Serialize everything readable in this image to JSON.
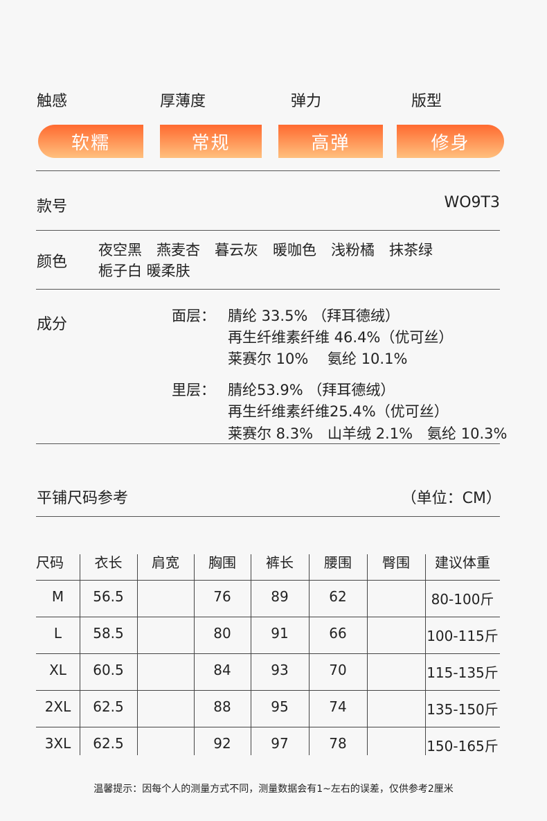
{
  "attributes": [
    {
      "label": "触感",
      "value": "软糯"
    },
    {
      "label": "厚薄度",
      "value": "常规"
    },
    {
      "label": "弹力",
      "value": "高弹"
    },
    {
      "label": "版型",
      "value": "修身"
    }
  ],
  "style_no": {
    "label": "款号",
    "value": "WO9T3"
  },
  "colors": {
    "label": "颜色",
    "line1": "夜空黑　燕麦杏　暮云灰　暖咖色　浅粉橘　抹茶绿",
    "line2": "栀子白 暖柔肤"
  },
  "composition": {
    "label": "成分",
    "outer": {
      "label": "面层：",
      "lines": [
        "腈纶 33.5% （拜耳德绒）",
        "再生纤维素纤维 46.4%（优可丝）",
        "莱赛尔 10%　 氨纶 10.1%"
      ]
    },
    "inner": {
      "label": "里层：",
      "lines": [
        "腈纶53.9% （拜耳德绒）",
        "再生纤维素纤维25.4%（优可丝）",
        "莱赛尔 8.3%　山羊绒 2.1%　氨纶 10.3%"
      ]
    }
  },
  "size_chart": {
    "title": "平铺尺码参考",
    "unit": "（单位：CM）",
    "headers": [
      "尺码",
      "衣长",
      "肩宽",
      "胸围",
      "裤长",
      "腰围",
      "臀围",
      "建议体重"
    ],
    "rows": [
      [
        "M",
        "56.5",
        "",
        "76",
        "89",
        "62",
        "",
        "80-100斤"
      ],
      [
        "L",
        "58.5",
        "",
        "80",
        "91",
        "66",
        "",
        "100-115斤"
      ],
      [
        "XL",
        "60.5",
        "",
        "84",
        "93",
        "70",
        "",
        "115-135斤"
      ],
      [
        "2XL",
        "62.5",
        "",
        "88",
        "95",
        "74",
        "",
        "135-150斤"
      ],
      [
        "3XL",
        "62.5",
        "",
        "92",
        "97",
        "78",
        "",
        "150-165斤"
      ]
    ]
  },
  "note": "温馨提示：因每个人的测量方式不同，测量数据会有1~左右的误差，仅供参考2厘米",
  "colors_theme": {
    "pill_top": "#ff6a30",
    "pill_bottom": "#ffc07e"
  }
}
